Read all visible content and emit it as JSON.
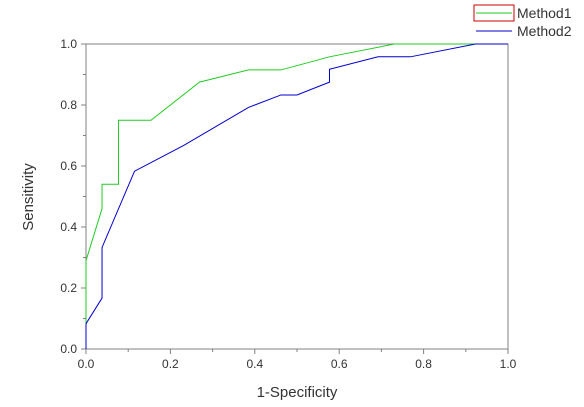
{
  "chart_data": {
    "type": "line",
    "title": "",
    "xlabel": "1-Specificity",
    "ylabel": "Sensitivity",
    "xlim": [
      0,
      1
    ],
    "ylim": [
      0,
      1
    ],
    "x_ticks": [
      {
        "value": 0.0,
        "label": "0.0"
      },
      {
        "value": 0.2,
        "label": "0.2"
      },
      {
        "value": 0.4,
        "label": "0.4"
      },
      {
        "value": 0.6,
        "label": "0.6"
      },
      {
        "value": 0.8,
        "label": "0.8"
      },
      {
        "value": 1.0,
        "label": "1.0"
      }
    ],
    "y_ticks": [
      {
        "value": 0.0,
        "label": "0.0"
      },
      {
        "value": 0.2,
        "label": "0.2"
      },
      {
        "value": 0.4,
        "label": "0.4"
      },
      {
        "value": 0.6,
        "label": "0.6"
      },
      {
        "value": 0.8,
        "label": "0.8"
      },
      {
        "value": 1.0,
        "label": "1.0"
      }
    ],
    "grid": false,
    "legend_position": "top-right",
    "series": [
      {
        "name": "Method1",
        "color": "#22cc22",
        "legend_box_color": "#cc0000",
        "x": [
          0.0,
          0.0,
          0.038,
          0.038,
          0.077,
          0.077,
          0.154,
          0.269,
          0.385,
          0.462,
          0.577,
          0.731,
          0.923,
          1.0
        ],
        "y": [
          0.0,
          0.29,
          0.46,
          0.54,
          0.54,
          0.75,
          0.75,
          0.875,
          0.915,
          0.915,
          0.958,
          1.0,
          1.0,
          1.0
        ]
      },
      {
        "name": "Method2",
        "color": "#0000cc",
        "x": [
          0.0,
          0.0,
          0.038,
          0.038,
          0.115,
          0.231,
          0.385,
          0.462,
          0.5,
          0.577,
          0.577,
          0.692,
          0.769,
          0.923,
          1.0
        ],
        "y": [
          0.0,
          0.083,
          0.167,
          0.333,
          0.583,
          0.667,
          0.792,
          0.833,
          0.833,
          0.875,
          0.917,
          0.958,
          0.958,
          1.0,
          1.0
        ]
      }
    ]
  }
}
